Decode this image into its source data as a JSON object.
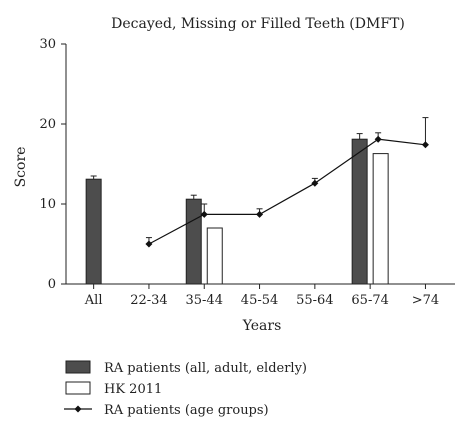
{
  "chart_data": {
    "type": "bar",
    "title": "Decayed, Missing or Filled Teeth (DMFT)",
    "xlabel": "Years",
    "ylabel": "Score",
    "ylim": [
      0,
      30
    ],
    "yticks": [
      0,
      10,
      20,
      30
    ],
    "categories": [
      "All",
      "22-34",
      "35-44",
      "45-54",
      "55-64",
      "65-74",
      ">74"
    ],
    "legend_position": "bottom",
    "bar_series": [
      {
        "name": "RA patients (all, adult, elderly)",
        "color": "#4d4d4d",
        "points": [
          {
            "category": "All",
            "value": 13.1,
            "error": 0.4
          },
          {
            "category": "35-44",
            "value": 10.6,
            "error": 0.5
          },
          {
            "category": "65-74",
            "value": 18.1,
            "error": 0.7
          }
        ]
      },
      {
        "name": "HK 2011",
        "color": "#ffffff",
        "points": [
          {
            "category": "35-44",
            "value": 7.0
          },
          {
            "category": "65-74",
            "value": 16.3
          }
        ]
      }
    ],
    "line_series": {
      "name": "RA patients (age groups)",
      "color": "#111111",
      "points": [
        {
          "category": "22-34",
          "value": 5.0,
          "error": 0.8
        },
        {
          "category": "35-44",
          "value": 8.7,
          "error": 1.3
        },
        {
          "category": "45-54",
          "value": 8.7,
          "error": 0.7
        },
        {
          "category": "55-64",
          "value": 12.6,
          "error": 0.6
        },
        {
          "category": ">74",
          "value": 17.4,
          "error": 3.4
        },
        {
          "category": "65-74",
          "value": 18.1,
          "error": 0.8
        }
      ]
    }
  }
}
